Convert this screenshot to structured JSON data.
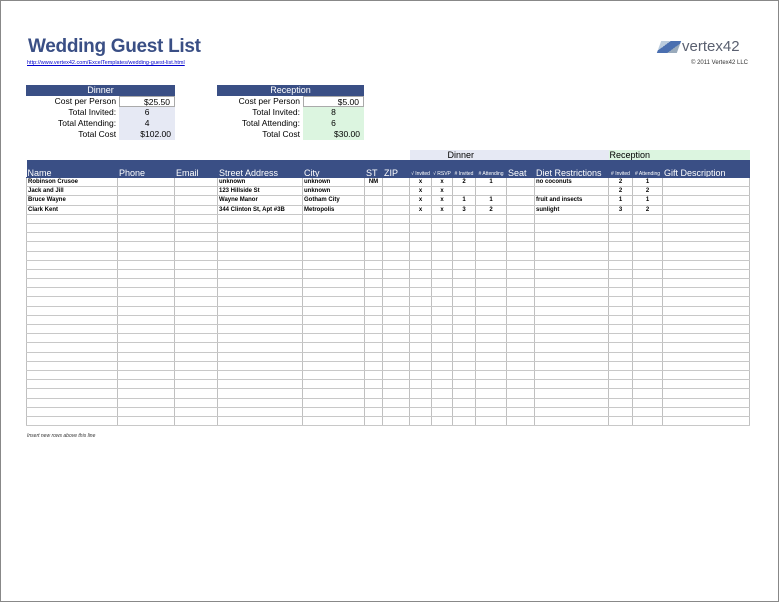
{
  "header": {
    "title": "Wedding Guest List",
    "url": "http://www.vertex42.com/ExcelTemplates/wedding-guest-list.html",
    "logo": "vertex42",
    "copyright": "© 2011 Vertex42 LLC"
  },
  "dinner": {
    "title": "Dinner",
    "cost_label": "Cost per Person",
    "cost": "$25.50",
    "invited_label": "Total Invited:",
    "invited": "6",
    "attending_label": "Total Attending:",
    "attending": "4",
    "total_label": "Total Cost",
    "total": "$102.00"
  },
  "reception": {
    "title": "Reception",
    "cost_label": "Cost per Person",
    "cost": "$5.00",
    "invited_label": "Total Invited:",
    "invited": "8",
    "attending_label": "Total Attending:",
    "attending": "6",
    "total_label": "Total Cost",
    "total": "$30.00"
  },
  "groups": {
    "dinner": "Dinner",
    "reception": "Reception"
  },
  "colors": {
    "header": "#3a4f85",
    "dinner_fill": "#e6e9f4",
    "reception_fill": "#dcf5e0"
  },
  "columns": [
    "Name",
    "Phone",
    "Email",
    "Street Address",
    "City",
    "ST",
    "ZIP",
    "√ Invited",
    "√ RSVP",
    "# Invited",
    "# Attending",
    "Seat",
    "Diet Restrictions",
    "# Invited",
    "# Attending",
    "Gift Description"
  ],
  "rows": [
    [
      "Robinson Crusoe",
      "",
      "",
      "unknown",
      "unknown",
      "NM",
      "",
      "x",
      "x",
      "2",
      "1",
      "",
      "no coconuts",
      "2",
      "1",
      ""
    ],
    [
      "Jack and Jill",
      "",
      "",
      "123 Hillside St",
      "unknown",
      "",
      "",
      "x",
      "x",
      "",
      "",
      "",
      "",
      "2",
      "2",
      ""
    ],
    [
      "Bruce Wayne",
      "",
      "",
      "Wayne Manor",
      "Gotham City",
      "",
      "",
      "x",
      "x",
      "1",
      "1",
      "",
      "fruit and insects",
      "1",
      "1",
      ""
    ],
    [
      "Clark Kent",
      "",
      "",
      "344 Clinton St, Apt #3B",
      "Metropolis",
      "",
      "",
      "x",
      "x",
      "3",
      "2",
      "",
      "sunlight",
      "3",
      "2",
      ""
    ]
  ],
  "footer_note": "Insert new rows above this line"
}
